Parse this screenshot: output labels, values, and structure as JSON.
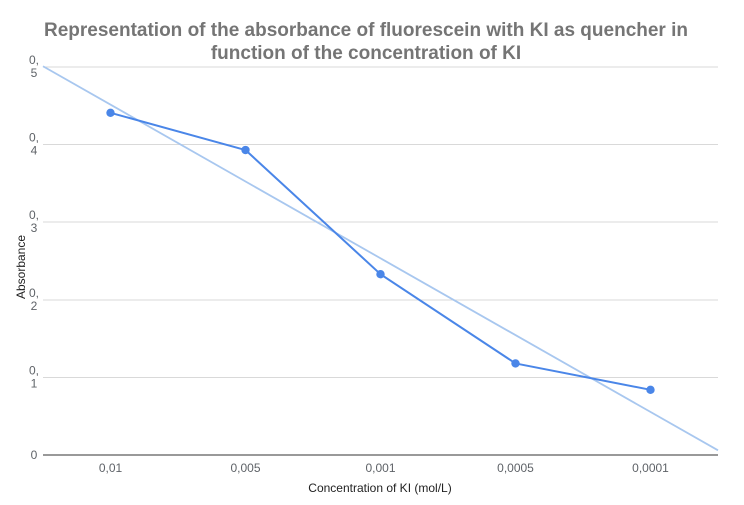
{
  "chart_data": {
    "type": "line",
    "title_lines": [
      "Representation of the absorbance of fluorescein with KI as quencher in",
      "function of the concentration of KI"
    ],
    "xlabel": "Concentration of KI (mol/L)",
    "ylabel": "Absorbance",
    "categories": [
      "0,01",
      "0,005",
      "0,001",
      "0,0005",
      "0,0001"
    ],
    "series": [
      {
        "values": [
          0.441,
          0.393,
          0.233,
          0.118,
          0.084
        ]
      }
    ],
    "trendline": {
      "type": "linear",
      "start": 0.501,
      "end": 0.006
    },
    "ylim": [
      0,
      0.5
    ],
    "yticks": [
      {
        "value": 0,
        "lines": [
          "0"
        ]
      },
      {
        "value": 0.1,
        "lines": [
          "0,",
          "1"
        ]
      },
      {
        "value": 0.2,
        "lines": [
          "0,",
          "2"
        ]
      },
      {
        "value": 0.3,
        "lines": [
          "0,",
          "3"
        ]
      },
      {
        "value": 0.4,
        "lines": [
          "0,",
          "4"
        ]
      },
      {
        "value": 0.5,
        "lines": [
          "0,",
          "5"
        ]
      }
    ],
    "grid": true,
    "colors": {
      "series": "#4a86e8",
      "trendline": "#a8c7ef",
      "grid": "#d9d9d9",
      "baseline": "#333333"
    }
  }
}
